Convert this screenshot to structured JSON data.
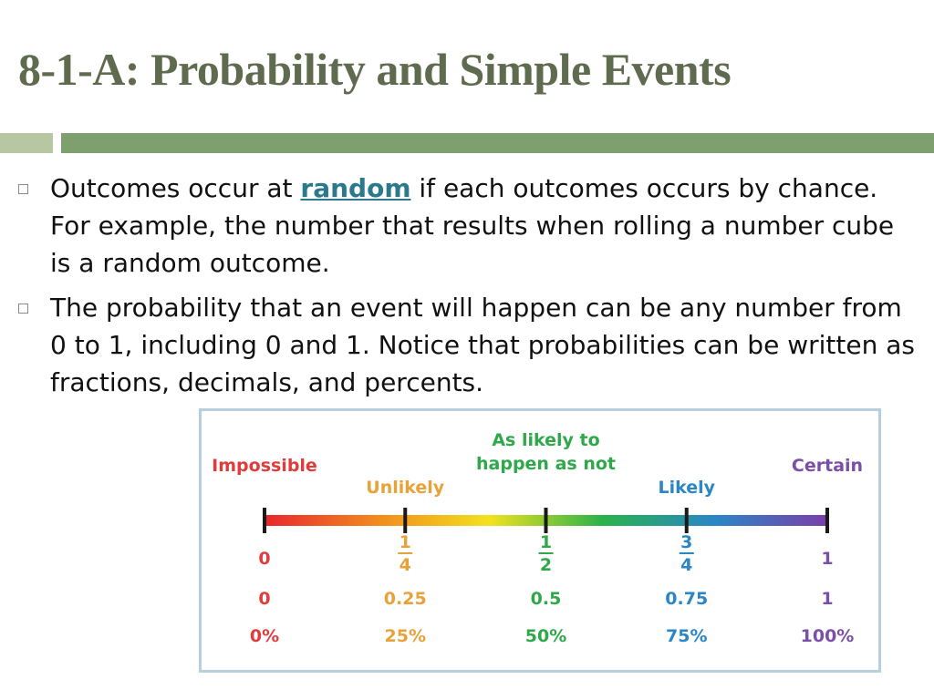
{
  "title": "8-1-A: Probability and Simple Events",
  "bullets": [
    {
      "before": "Outcomes occur at ",
      "keyword": "random",
      "after": " if each outcomes occurs by chance. For example, the number that results when rolling a number cube is a random outcome."
    },
    {
      "text": "The probability that an event will happen can be any number from 0 to 1, including 0 and 1. Notice that probabilities can be written as fractions, decimals, and percents."
    }
  ],
  "scale": {
    "likelihood_labels": [
      {
        "text": "Impossible",
        "value": 0,
        "color": "#e03c3c"
      },
      {
        "text": "Unlikely",
        "value": 0.25,
        "color": "#e8a23a"
      },
      {
        "text": "As likely to",
        "text2": "happen as not",
        "value": 0.5,
        "color": "#2fa84a"
      },
      {
        "text": "Likely",
        "value": 0.75,
        "color": "#2a86c7"
      },
      {
        "text": "Certain",
        "value": 1,
        "color": "#7a4fa8"
      }
    ],
    "points": [
      {
        "value": 0,
        "fraction_whole": "0",
        "decimal": "0",
        "percent": "0%",
        "color": "#e03c3c"
      },
      {
        "value": 0.25,
        "fraction_num": "1",
        "fraction_den": "4",
        "decimal": "0.25",
        "percent": "25%",
        "color": "#e8a23a"
      },
      {
        "value": 0.5,
        "fraction_num": "1",
        "fraction_den": "2",
        "decimal": "0.5",
        "percent": "50%",
        "color": "#2fa84a"
      },
      {
        "value": 0.75,
        "fraction_num": "3",
        "fraction_den": "4",
        "decimal": "0.75",
        "percent": "75%",
        "color": "#2a86c7"
      },
      {
        "value": 1,
        "fraction_whole": "1",
        "decimal": "1",
        "percent": "100%",
        "color": "#7a4fa8"
      }
    ],
    "gradient_colors": [
      "#e8262e",
      "#f28a1e",
      "#f2e21e",
      "#29b34a",
      "#2a86c7",
      "#7a3fa8"
    ]
  }
}
